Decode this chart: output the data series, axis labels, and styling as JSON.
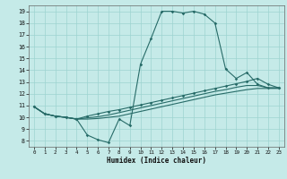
{
  "xlabel": "Humidex (Indice chaleur)",
  "xlim": [
    -0.5,
    23.5
  ],
  "ylim": [
    7.5,
    19.5
  ],
  "xticks": [
    0,
    1,
    2,
    3,
    4,
    5,
    6,
    7,
    8,
    9,
    10,
    11,
    12,
    13,
    14,
    15,
    16,
    17,
    18,
    19,
    20,
    21,
    22,
    23
  ],
  "yticks": [
    8,
    9,
    10,
    11,
    12,
    13,
    14,
    15,
    16,
    17,
    18,
    19
  ],
  "bg_color": "#c5eae8",
  "grid_color": "#9dd4d0",
  "line_color": "#276b68",
  "line1_x": [
    0,
    1,
    2,
    3,
    4,
    5,
    6,
    7,
    8,
    9,
    10,
    11,
    12,
    13,
    14,
    15,
    16,
    17,
    18,
    19,
    20,
    21,
    22,
    23
  ],
  "line1_y": [
    10.9,
    10.3,
    10.1,
    10.0,
    9.85,
    8.5,
    8.1,
    7.85,
    9.85,
    9.3,
    14.5,
    16.7,
    19.0,
    19.0,
    18.85,
    19.0,
    18.75,
    18.0,
    14.1,
    13.3,
    13.8,
    12.8,
    12.5,
    12.5
  ],
  "line2_x": [
    0,
    1,
    2,
    3,
    4,
    5,
    6,
    7,
    8,
    9,
    10,
    11,
    12,
    13,
    14,
    15,
    16,
    17,
    18,
    19,
    20,
    21,
    22,
    23
  ],
  "line2_y": [
    10.9,
    10.3,
    10.1,
    10.0,
    9.85,
    10.1,
    10.3,
    10.5,
    10.65,
    10.85,
    11.05,
    11.25,
    11.45,
    11.65,
    11.85,
    12.05,
    12.25,
    12.45,
    12.65,
    12.85,
    13.05,
    13.3,
    12.8,
    12.5
  ],
  "line3_x": [
    0,
    1,
    2,
    3,
    4,
    5,
    6,
    7,
    8,
    9,
    10,
    11,
    12,
    13,
    14,
    15,
    16,
    17,
    18,
    19,
    20,
    21,
    22,
    23
  ],
  "line3_y": [
    10.9,
    10.3,
    10.1,
    10.0,
    9.85,
    9.95,
    10.05,
    10.2,
    10.4,
    10.6,
    10.8,
    11.0,
    11.2,
    11.4,
    11.6,
    11.8,
    12.0,
    12.2,
    12.35,
    12.55,
    12.7,
    12.7,
    12.5,
    12.5
  ],
  "line4_x": [
    0,
    1,
    2,
    3,
    4,
    5,
    6,
    7,
    8,
    9,
    10,
    11,
    12,
    13,
    14,
    15,
    16,
    17,
    18,
    19,
    20,
    21,
    22,
    23
  ],
  "line4_y": [
    10.9,
    10.3,
    10.1,
    10.0,
    9.85,
    9.85,
    9.9,
    10.0,
    10.1,
    10.3,
    10.5,
    10.7,
    10.9,
    11.1,
    11.3,
    11.5,
    11.7,
    11.9,
    12.05,
    12.2,
    12.35,
    12.45,
    12.45,
    12.45
  ]
}
